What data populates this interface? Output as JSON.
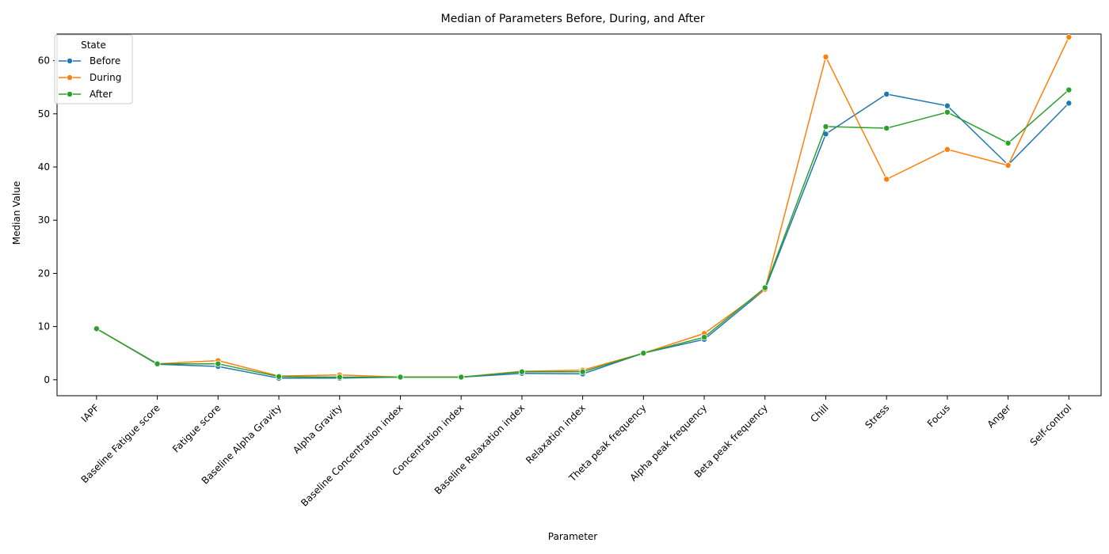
{
  "chart_data": {
    "type": "line",
    "title": "Median of Parameters Before, During, and After",
    "xlabel": "Parameter",
    "ylabel": "Median Value",
    "ylim": [
      -3,
      65
    ],
    "yticks": [
      0,
      10,
      20,
      30,
      40,
      50,
      60
    ],
    "grid": false,
    "legend": {
      "title": "State",
      "placement": "top-left"
    },
    "categories": [
      "IAPF",
      "Baseline Fatigue score",
      "Fatigue score",
      "Baseline Alpha Gravity",
      "Alpha Gravity",
      "Baseline Concentration index",
      "Concentration index",
      "Baseline Relaxation index",
      "Relaxation index",
      "Theta peak frequency",
      "Alpha peak frequency",
      "Beta peak frequency",
      "Chill",
      "Stress",
      "Focus",
      "Anger",
      "Self-control"
    ],
    "series": [
      {
        "name": "Before",
        "color": "#1f77b4",
        "values": [
          9.6,
          2.9,
          2.5,
          0.3,
          0.3,
          0.5,
          0.5,
          1.2,
          1.1,
          5.0,
          7.6,
          17.0,
          46.2,
          53.7,
          51.5,
          40.4,
          52.0
        ]
      },
      {
        "name": "During",
        "color": "#ff7f0e",
        "values": [
          9.6,
          3.0,
          3.6,
          0.7,
          0.9,
          0.5,
          0.5,
          1.6,
          1.8,
          5.0,
          8.7,
          17.0,
          60.7,
          37.7,
          43.3,
          40.3,
          64.4
        ]
      },
      {
        "name": "After",
        "color": "#2ca02c",
        "values": [
          9.6,
          3.0,
          3.0,
          0.6,
          0.5,
          0.5,
          0.5,
          1.5,
          1.5,
          5.0,
          8.0,
          17.3,
          47.6,
          47.3,
          50.3,
          44.5,
          54.5
        ]
      }
    ]
  }
}
